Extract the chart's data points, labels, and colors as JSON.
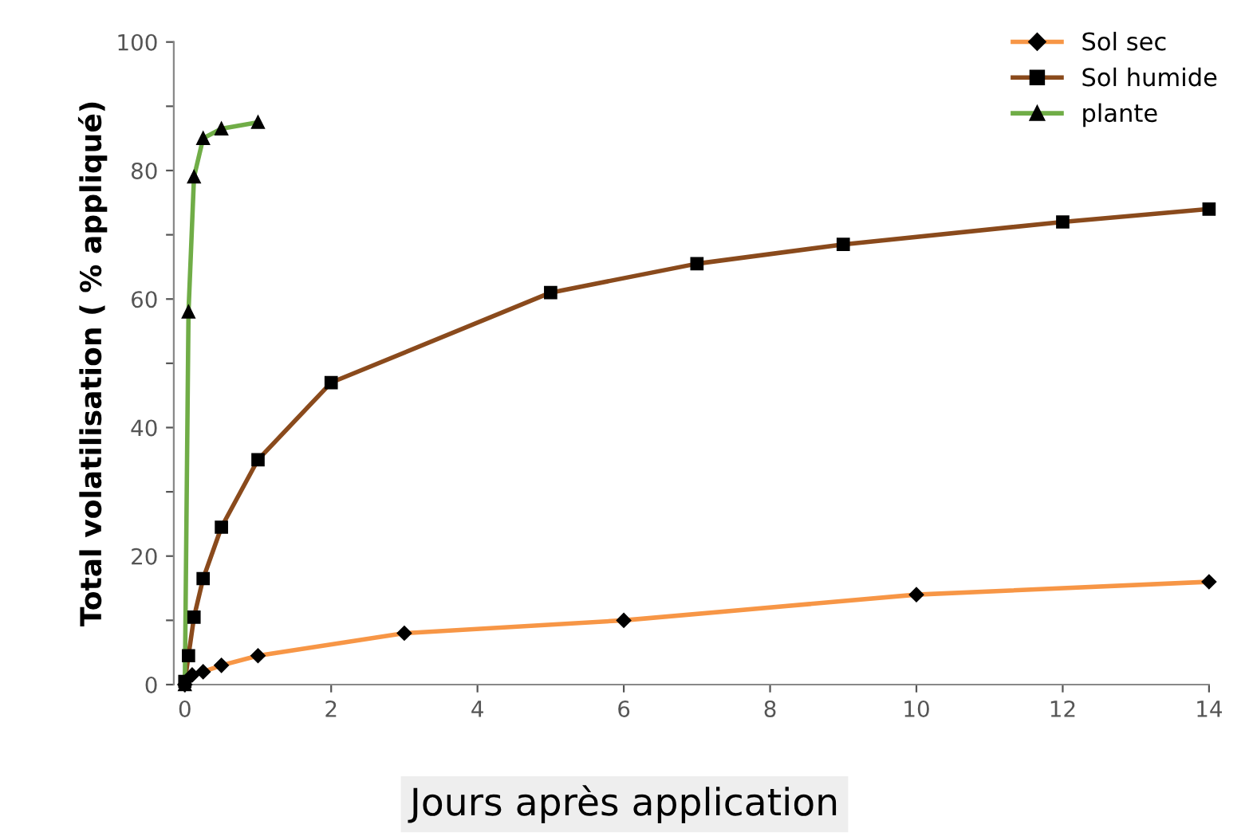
{
  "chart_data": {
    "type": "line",
    "xlabel": "Jours après application",
    "ylabel": "Total volatilisation ( % appliqué)",
    "xlim": [
      0,
      14
    ],
    "xticks": [
      0,
      2,
      4,
      6,
      8,
      10,
      12,
      14
    ],
    "ylim": [
      0,
      100
    ],
    "yticks": [
      0,
      {
        "value": 10,
        "label": null
      },
      20,
      {
        "value": 30,
        "label": null
      },
      40,
      {
        "value": 50,
        "label": null
      },
      60,
      {
        "value": 70,
        "label": null
      },
      80,
      {
        "value": 90,
        "label": null
      },
      100
    ],
    "grid": false,
    "legend": "top right",
    "series": [
      {
        "name": "Sol sec",
        "color": "#f79646",
        "marker": "diamond",
        "x": [
          0,
          0.1,
          0.25,
          0.5,
          1,
          3,
          6,
          10,
          14
        ],
        "values": [
          0,
          1.5,
          2,
          3,
          4.5,
          8,
          10,
          14,
          16
        ]
      },
      {
        "name": "Sol humide",
        "color": "#8a4a1c",
        "marker": "square",
        "x": [
          0,
          0.05,
          0.125,
          0.25,
          0.5,
          1,
          2,
          5,
          7,
          9,
          12,
          14
        ],
        "values": [
          0.5,
          4.5,
          10.5,
          16.5,
          24.5,
          35,
          47,
          61,
          65.5,
          68.5,
          72,
          74
        ]
      },
      {
        "name": "plante",
        "color": "#70ad47",
        "marker": "triangle",
        "x": [
          0,
          0.05,
          0.125,
          0.25,
          0.5,
          1
        ],
        "values": [
          0,
          58,
          79,
          85,
          86.5,
          87.5
        ]
      }
    ]
  }
}
